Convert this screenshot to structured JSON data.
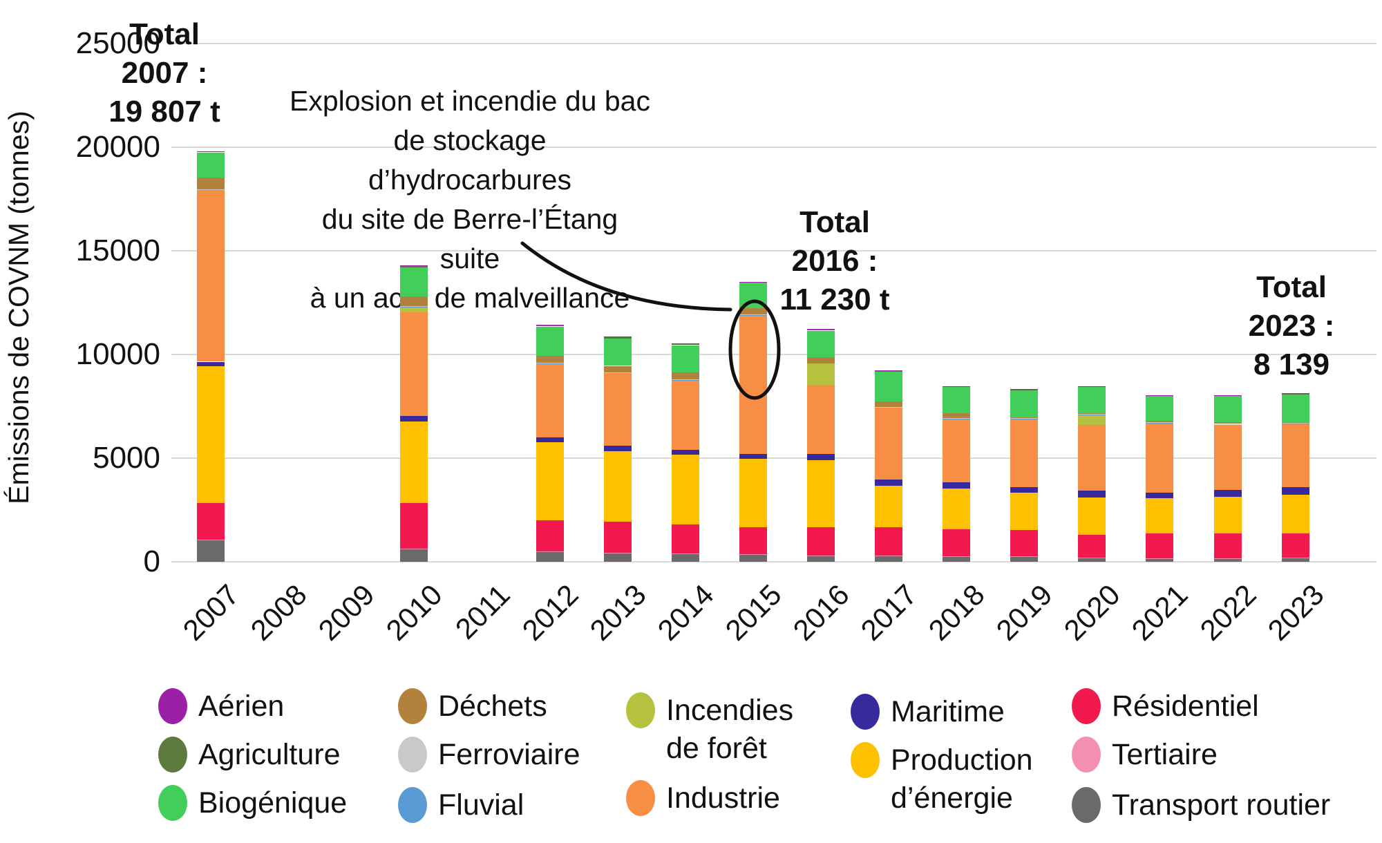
{
  "yaxis": {
    "title": "Émissions de COVNM (tonnes)",
    "ticks": [
      0,
      5000,
      10000,
      15000,
      20000,
      25000
    ]
  },
  "annotation": {
    "text": "Explosion et incendie du bac\nde stockage d’hydrocarbures\ndu site de Berre-l’Étang suite\nà un acte de malveillance"
  },
  "totals": [
    {
      "text": "Total\n2007 :\n19 807 t"
    },
    {
      "text": "Total\n2016 :\n11 230 t"
    },
    {
      "text": "Total\n2023 :\n8 139 t"
    }
  ],
  "legend": [
    {
      "label": "Aérien",
      "color": "#9C1FA8"
    },
    {
      "label": "Agriculture",
      "color": "#5C7A3E"
    },
    {
      "label": "Biogénique",
      "color": "#41CE5A"
    },
    {
      "label": "Déchets",
      "color": "#B2813D"
    },
    {
      "label": "Ferroviaire",
      "color": "#C9C9C9"
    },
    {
      "label": "Fluvial",
      "color": "#5B9BD5"
    },
    {
      "label": "Incendies\nde forêt",
      "color": "#B6C23F"
    },
    {
      "label": "Industrie",
      "color": "#F78E44"
    },
    {
      "label": "Maritime",
      "color": "#372A9E"
    },
    {
      "label": "Production\nd’énergie",
      "color": "#FFC000"
    },
    {
      "label": "Résidentiel",
      "color": "#F2194F"
    },
    {
      "label": "Tertiaire",
      "color": "#F48FB1"
    },
    {
      "label": "Transport routier",
      "color": "#6B6969"
    }
  ],
  "chart_data": {
    "type": "bar",
    "stacked": true,
    "title": "",
    "xlabel": "",
    "ylabel": "Émissions de COVNM (tonnes)",
    "ylim": [
      0,
      25000
    ],
    "grid": "horizontal",
    "legend_position": "bottom",
    "categories": [
      2007,
      2008,
      2009,
      2010,
      2011,
      2012,
      2013,
      2014,
      2015,
      2016,
      2017,
      2018,
      2019,
      2020,
      2021,
      2022,
      2023
    ],
    "labeled_totals": {
      "2007": "19 807 t",
      "2016": "11 230 t",
      "2023": "8 139 t"
    },
    "series": [
      {
        "name": "Transport routier",
        "color": "#6B6969",
        "values": [
          1030,
          0,
          0,
          600,
          0,
          465,
          400,
          370,
          330,
          270,
          270,
          250,
          230,
          170,
          130,
          130,
          170
        ]
      },
      {
        "name": "Tertiaire",
        "color": "#F48FB1",
        "values": [
          40,
          0,
          0,
          40,
          0,
          35,
          35,
          35,
          35,
          35,
          35,
          30,
          30,
          30,
          30,
          30,
          30
        ]
      },
      {
        "name": "Résidentiel",
        "color": "#F2194F",
        "values": [
          1760,
          0,
          0,
          2190,
          0,
          1500,
          1495,
          1395,
          1305,
          1365,
          1365,
          1290,
          1270,
          1100,
          1210,
          1200,
          1170
        ]
      },
      {
        "name": "Production d’énergie",
        "color": "#FFC000",
        "values": [
          6600,
          0,
          0,
          3940,
          0,
          3770,
          3400,
          3370,
          3300,
          3230,
          2000,
          1960,
          1800,
          1800,
          1700,
          1770,
          1860
        ]
      },
      {
        "name": "Maritime",
        "color": "#372A9E",
        "values": [
          220,
          0,
          0,
          270,
          0,
          230,
          270,
          230,
          230,
          300,
          300,
          300,
          270,
          330,
          270,
          330,
          370
        ]
      },
      {
        "name": "Industrie",
        "color": "#F78E44",
        "values": [
          8310,
          0,
          0,
          4990,
          0,
          3570,
          3530,
          3370,
          6700,
          3330,
          3490,
          3070,
          3300,
          3170,
          3360,
          3170,
          3070
        ]
      },
      {
        "name": "Incendies de forêt",
        "color": "#B6C23F",
        "values": [
          0,
          0,
          0,
          270,
          0,
          0,
          0,
          0,
          0,
          1040,
          0,
          0,
          0,
          500,
          0,
          0,
          0
        ]
      },
      {
        "name": "Fluvial",
        "color": "#5B9BD5",
        "values": [
          10,
          0,
          0,
          10,
          0,
          10,
          10,
          10,
          10,
          0,
          10,
          10,
          10,
          10,
          10,
          10,
          10
        ]
      },
      {
        "name": "Ferroviaire",
        "color": "#C9C9C9",
        "values": [
          10,
          0,
          0,
          10,
          0,
          10,
          10,
          10,
          10,
          0,
          10,
          10,
          10,
          10,
          10,
          10,
          10
        ]
      },
      {
        "name": "Déchets",
        "color": "#B2813D",
        "values": [
          570,
          0,
          0,
          470,
          0,
          360,
          300,
          330,
          300,
          290,
          240,
          260,
          60,
          60,
          70,
          70,
          40
        ]
      },
      {
        "name": "Biogénique",
        "color": "#41CE5A",
        "values": [
          1200,
          0,
          0,
          1400,
          0,
          1400,
          1310,
          1330,
          1250,
          1290,
          1450,
          1260,
          1280,
          1240,
          1210,
          1270,
          1340
        ]
      },
      {
        "name": "Agriculture",
        "color": "#5C7A3E",
        "values": [
          47,
          0,
          0,
          100,
          0,
          70,
          100,
          80,
          30,
          40,
          30,
          25,
          40,
          40,
          30,
          40,
          30
        ]
      },
      {
        "name": "Aérien",
        "color": "#9C1FA8",
        "values": [
          10,
          0,
          0,
          20,
          0,
          20,
          20,
          20,
          10,
          40,
          20,
          15,
          20,
          20,
          20,
          20,
          39
        ]
      }
    ]
  }
}
